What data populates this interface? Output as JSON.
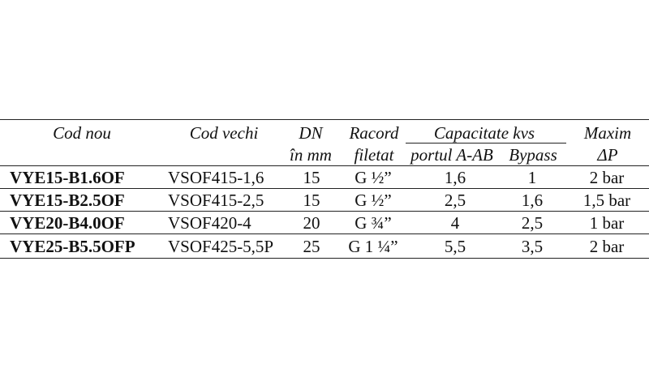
{
  "header": {
    "cod_nou": "Cod nou",
    "cod_vechi": "Cod vechi",
    "dn_line1": "DN",
    "dn_line2": "în mm",
    "racord_line1": "Racord",
    "racord_line2": "filetat",
    "capacitate": "Capacitate kvs",
    "portul": "portul A-AB",
    "bypass": "Bypass",
    "maxim_line1": "Maxim",
    "maxim_line2": "ΔP"
  },
  "rows": [
    {
      "cod_nou": "VYE15-B1.6OF",
      "cod_vechi": "VSOF415-1,6",
      "dn": "15",
      "racord": "G ½”",
      "portul": "1,6",
      "bypass": "1",
      "dp": "2 bar"
    },
    {
      "cod_nou": "VYE15-B2.5OF",
      "cod_vechi": "VSOF415-2,5",
      "dn": "15",
      "racord": "G ½”",
      "portul": "2,5",
      "bypass": "1,6",
      "dp": "1,5 bar"
    },
    {
      "cod_nou": "VYE20-B4.0OF",
      "cod_vechi": "VSOF420-4",
      "dn": "20",
      "racord": "G ¾”",
      "portul": "4",
      "bypass": "2,5",
      "dp": "1 bar"
    },
    {
      "cod_nou": "VYE25-B5.5OFP",
      "cod_vechi": "VSOF425-5,5P",
      "dn": "25",
      "racord": "G 1 ¼”",
      "portul": "5,5",
      "bypass": "3,5",
      "dp": "2 bar"
    }
  ]
}
